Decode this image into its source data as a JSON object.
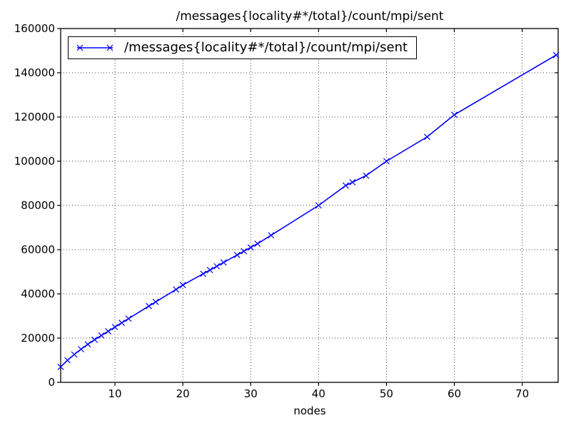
{
  "figure": {
    "background": "#ffffff",
    "frame_color": "#000000",
    "grid_color": "#444444"
  },
  "chart_data": {
    "type": "line",
    "title": "/messages{locality#*/total}/count/mpi/sent",
    "xlabel": "nodes",
    "ylabel": "",
    "legend": {
      "position": "upper left",
      "entries": [
        "/messages{locality#*/total}/count/mpi/sent"
      ]
    },
    "line_color": "#0000ff",
    "marker": "x",
    "grid": true,
    "grid_style": "dotted",
    "xlim": [
      2,
      75.3
    ],
    "ylim": [
      0,
      160000
    ],
    "xticks": [
      10,
      20,
      30,
      40,
      50,
      60,
      70
    ],
    "yticks": [
      0,
      20000,
      40000,
      60000,
      80000,
      100000,
      120000,
      140000,
      160000
    ],
    "x": [
      2,
      3,
      4,
      5,
      6,
      7,
      8,
      9,
      10,
      11,
      12,
      15,
      16,
      19,
      20,
      23,
      24,
      25,
      26,
      28,
      29,
      30,
      31,
      33,
      40,
      44,
      45,
      47,
      50,
      56,
      60,
      75
    ],
    "y": [
      7000,
      10000,
      12600,
      15000,
      17200,
      19300,
      21200,
      23100,
      25000,
      26900,
      28800,
      34500,
      36400,
      42000,
      44000,
      49100,
      50800,
      52500,
      54200,
      57600,
      59300,
      61000,
      62700,
      66500,
      80000,
      89000,
      90500,
      93500,
      100000,
      111000,
      121000,
      148000
    ]
  }
}
